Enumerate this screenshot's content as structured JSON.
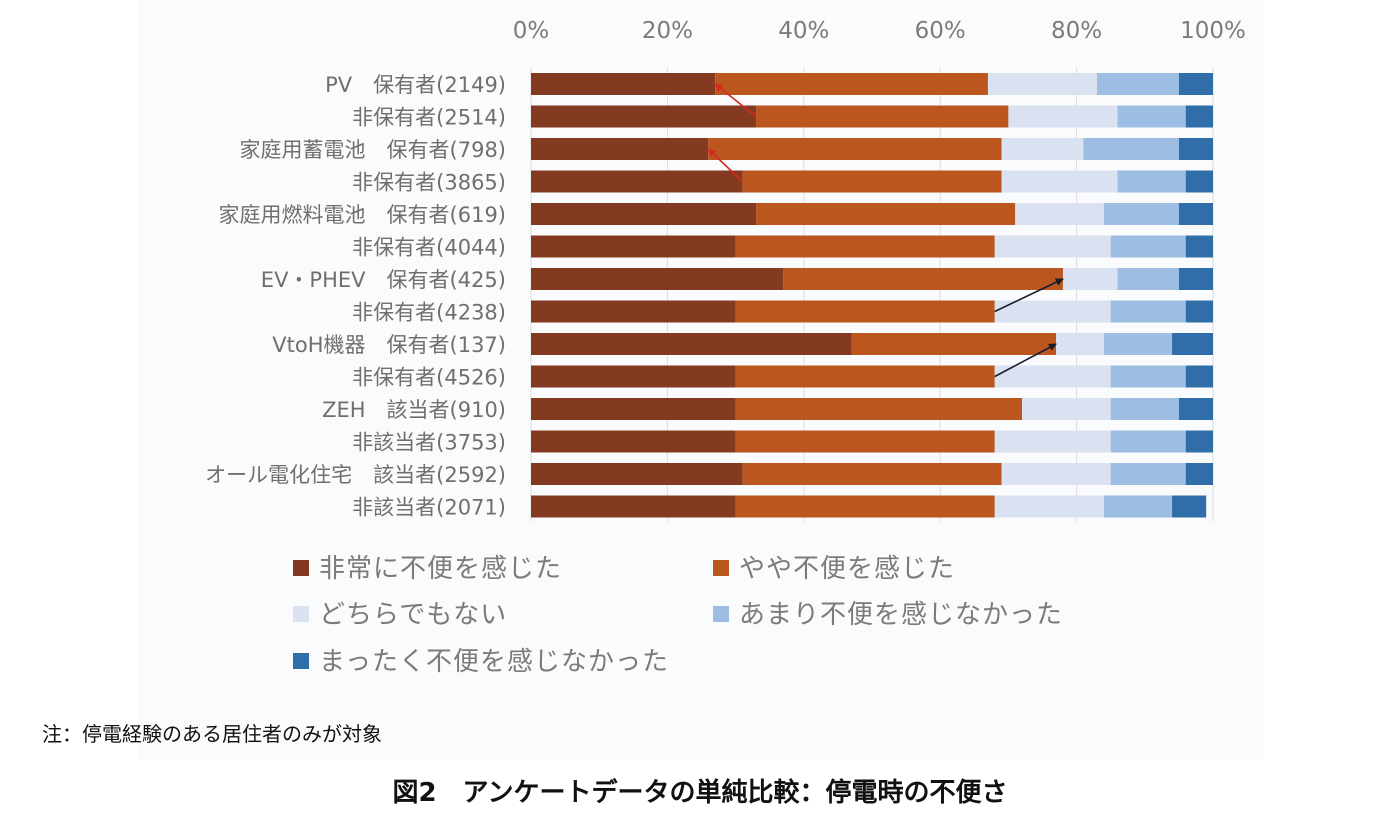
{
  "chart_data": {
    "type": "bar",
    "orientation": "horizontal",
    "stacked": "percent",
    "categories": [
      "PV　保有者(2149)",
      "非保有者(2514)",
      "家庭用蓄電池　保有者(798)",
      "非保有者(3865)",
      "家庭用燃料電池　保有者(619)",
      "非保有者(4044)",
      "EV・PHEV　保有者(425)",
      "非保有者(4238)",
      "VtoH機器　保有者(137)",
      "非保有者(4526)",
      "ZEH　該当者(910)",
      "非該当者(3753)",
      "オール電化住宅　該当者(2592)",
      "非該当者(2071)"
    ],
    "series": [
      {
        "name": "非常に不便を感じた",
        "color": "#843a21",
        "values": [
          27,
          33,
          26,
          31,
          33,
          30,
          37,
          30,
          47,
          30,
          30,
          30,
          31,
          30
        ]
      },
      {
        "name": "やや不便を感じた",
        "color": "#bb561f",
        "values": [
          40,
          37,
          43,
          38,
          38,
          38,
          41,
          38,
          30,
          38,
          42,
          38,
          38,
          38
        ]
      },
      {
        "name": "どちらでもない",
        "color": "#dae1f0",
        "values": [
          16,
          16,
          12,
          17,
          13,
          17,
          8,
          17,
          7,
          17,
          13,
          17,
          16,
          16
        ]
      },
      {
        "name": "あまり不便を感じなかった",
        "color": "#9dbde2",
        "values": [
          12,
          10,
          14,
          10,
          11,
          11,
          9,
          11,
          10,
          11,
          10,
          11,
          11,
          10
        ]
      },
      {
        "name": "まったく不便を感じなかった",
        "color": "#2f6ea8",
        "values": [
          5,
          4,
          5,
          4,
          5,
          4,
          5,
          4,
          6,
          4,
          5,
          4,
          4,
          5
        ]
      }
    ],
    "x_ticks": [
      "0%",
      "20%",
      "40%",
      "60%",
      "80%",
      "100%"
    ],
    "xlim": [
      0,
      100
    ],
    "x_axis_position": "top",
    "grid": true,
    "legend_placement": "bottom",
    "annotations": [
      {
        "type": "arrow",
        "color": "#d6281e",
        "from": {
          "category": 1,
          "x": 33
        },
        "to": {
          "category": 0,
          "x": 27
        }
      },
      {
        "type": "arrow",
        "color": "#d6281e",
        "from": {
          "category": 3,
          "x": 31
        },
        "to": {
          "category": 2,
          "x": 26
        }
      },
      {
        "type": "arrow",
        "color": "#1c1c2a",
        "from": {
          "category": 7,
          "x": 68
        },
        "to": {
          "category": 6,
          "x": 78
        }
      },
      {
        "type": "arrow",
        "color": "#1c1c2a",
        "from": {
          "category": 9,
          "x": 68
        },
        "to": {
          "category": 8,
          "x": 77
        }
      }
    ]
  },
  "note": "注：停電経験のある居住者のみが対象",
  "caption": "図2　アンケートデータの単純比較：停電時の不便さ"
}
